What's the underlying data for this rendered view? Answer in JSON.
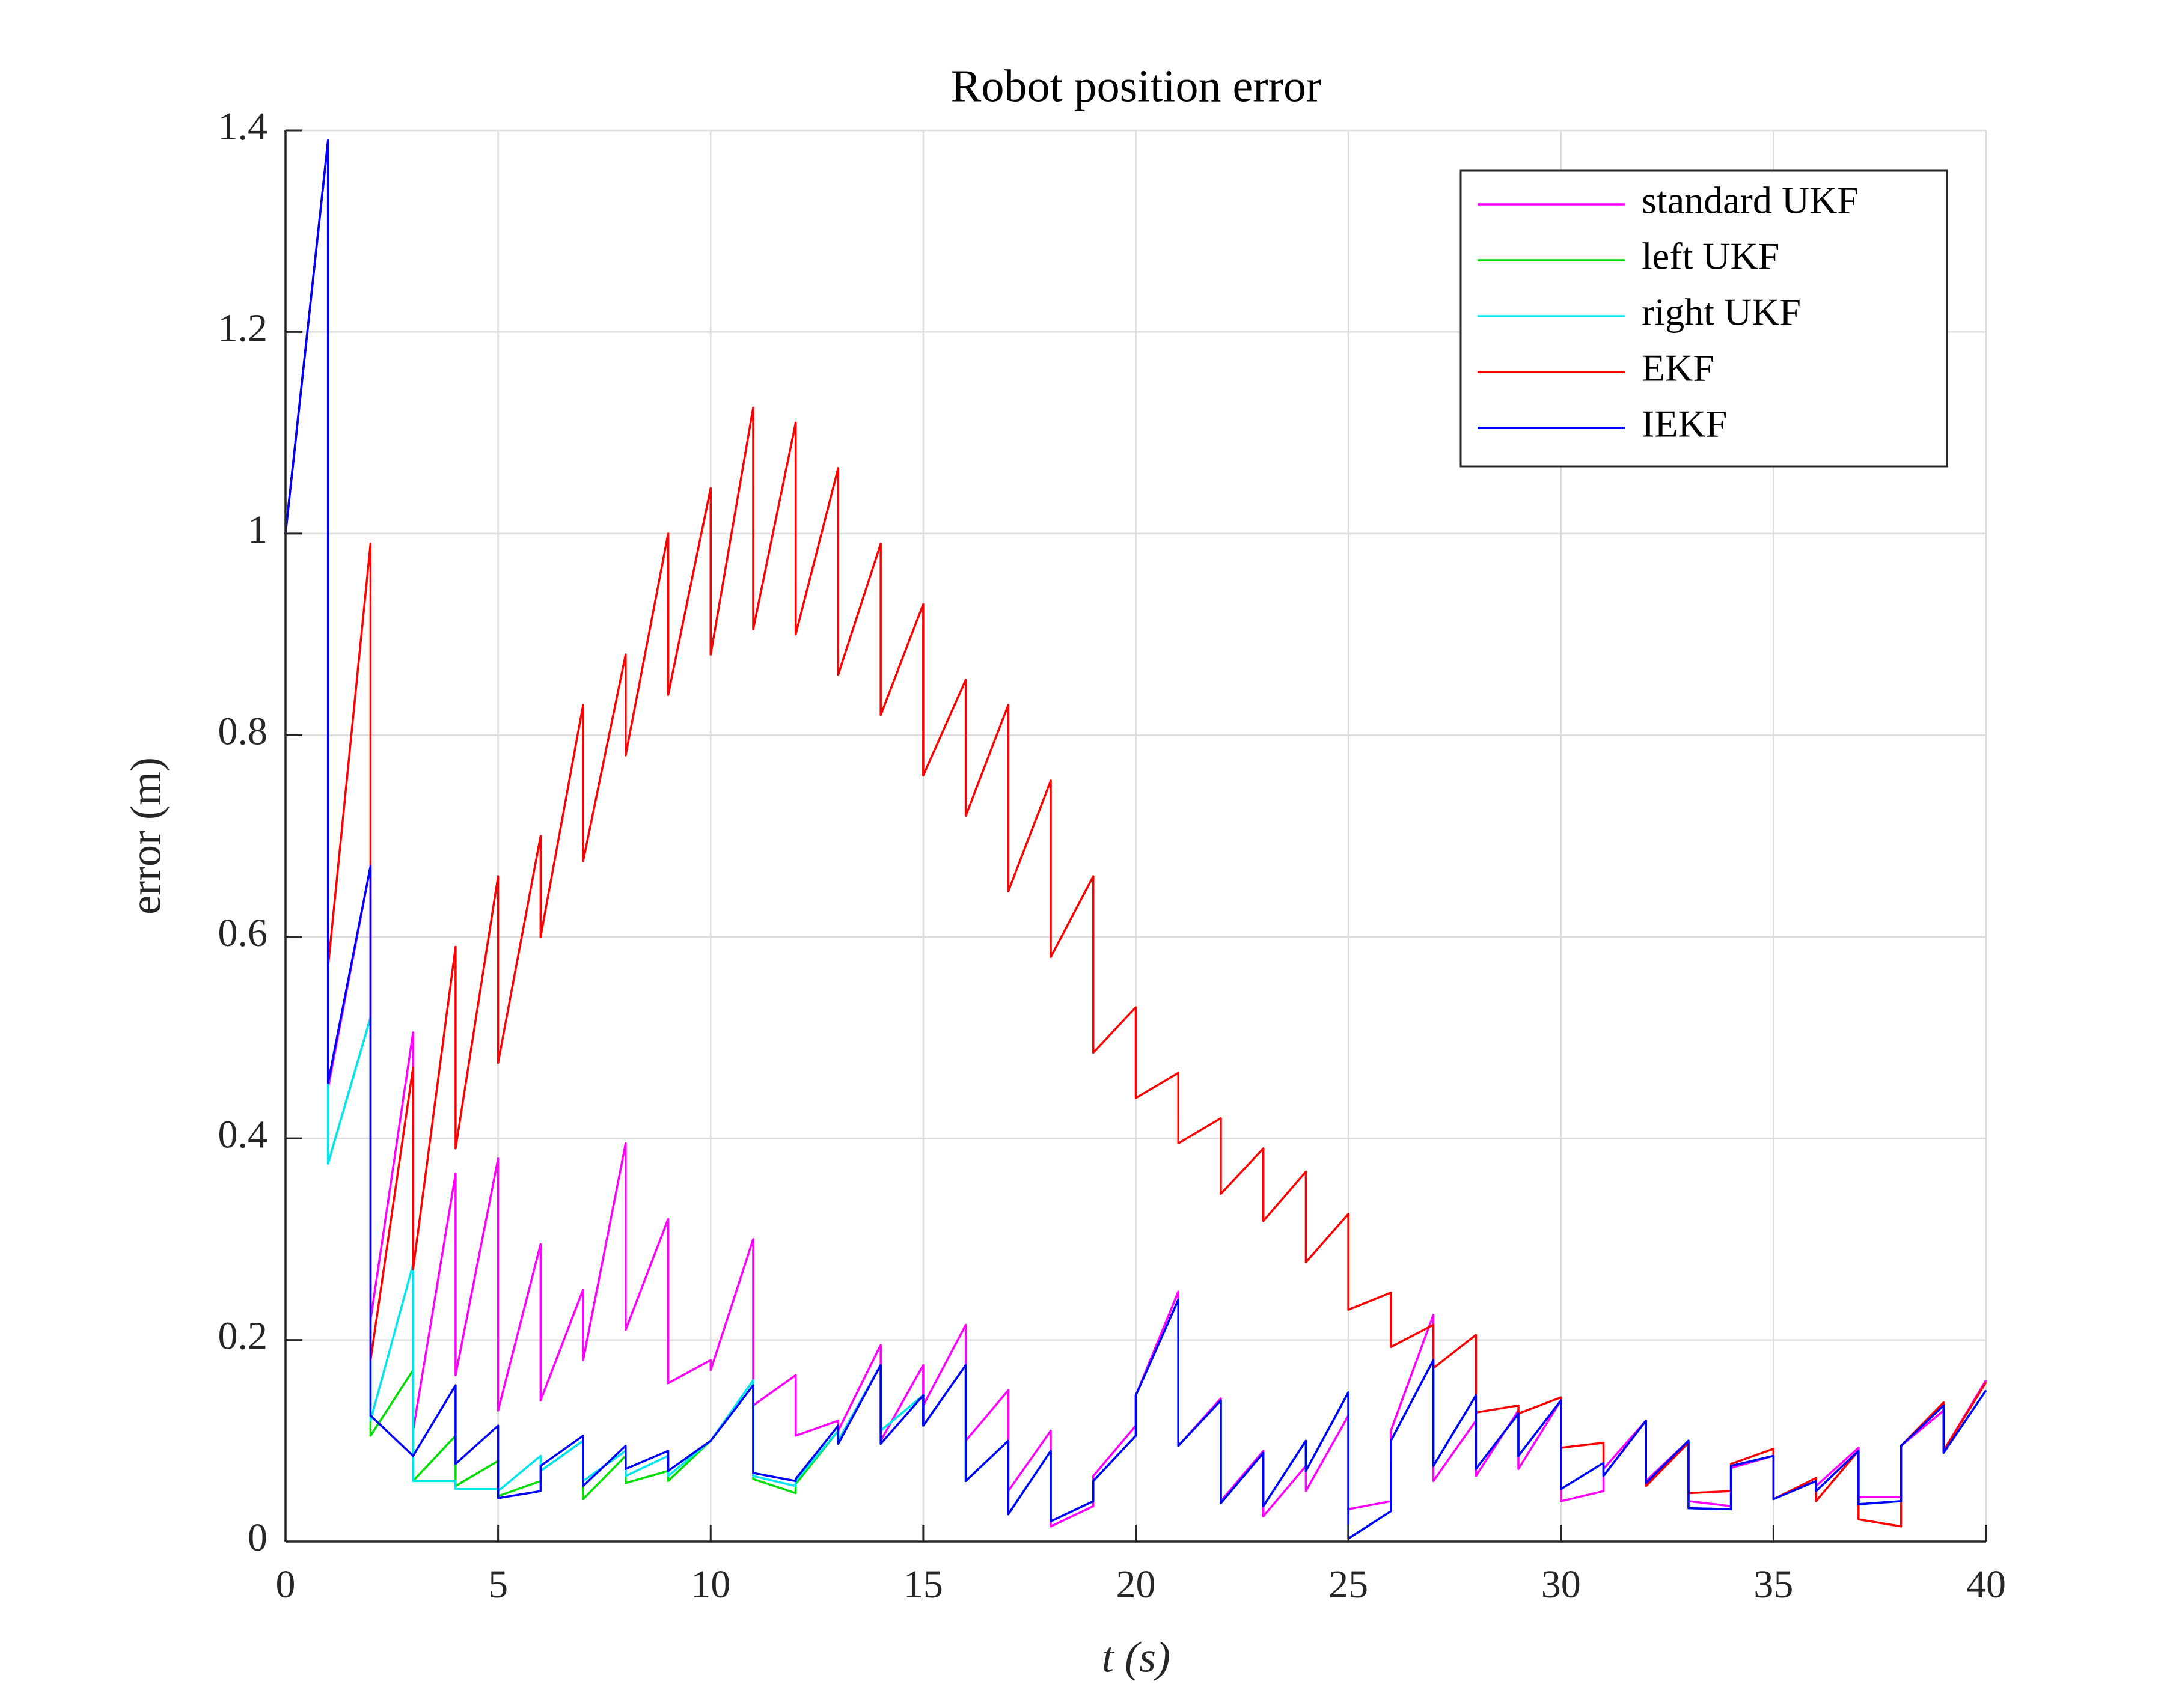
{
  "chart_data": {
    "type": "line",
    "title": "Robot position error",
    "xlabel": "t (s)",
    "ylabel": "error (m)",
    "xlim": [
      0,
      40
    ],
    "ylim": [
      0,
      1.4
    ],
    "xticks": [
      0,
      5,
      10,
      15,
      20,
      25,
      30,
      35,
      40
    ],
    "yticks": [
      0,
      0.2,
      0.4,
      0.6,
      0.8,
      1,
      1.2,
      1.4
    ],
    "grid": true,
    "legend": "northeast",
    "x": [
      0,
      1,
      1,
      2,
      2,
      3,
      3,
      4,
      4,
      5,
      5,
      6,
      6,
      7,
      7,
      8,
      8,
      9,
      9,
      10,
      10,
      11,
      11,
      12,
      12,
      13,
      13,
      14,
      14,
      15,
      15,
      16,
      16,
      17,
      17,
      18,
      18,
      19,
      19,
      20,
      20,
      21,
      21,
      22,
      22,
      23,
      23,
      24,
      24,
      25,
      25,
      26,
      26,
      27,
      27,
      28,
      28,
      29,
      29,
      30,
      30,
      31,
      31,
      32,
      32,
      33,
      33,
      34,
      34,
      35,
      35,
      36,
      36,
      37,
      37,
      38,
      38,
      39,
      39,
      40
    ],
    "series": [
      {
        "name": "standard UKF",
        "color": "#ff00ff",
        "values": [
          1,
          1.39,
          0.45,
          0.67,
          0.22,
          0.505,
          0.11,
          0.365,
          0.165,
          0.38,
          0.13,
          0.295,
          0.14,
          0.25,
          0.18,
          0.395,
          0.21,
          0.32,
          0.157,
          0.18,
          0.17,
          0.3,
          0.135,
          0.165,
          0.105,
          0.12,
          0.11,
          0.195,
          0.1,
          0.175,
          0.135,
          0.215,
          0.1,
          0.15,
          0.05,
          0.11,
          0.015,
          0.035,
          0.065,
          0.115,
          0.145,
          0.248,
          0.095,
          0.142,
          0.04,
          0.09,
          0.025,
          0.075,
          0.05,
          0.125,
          0.032,
          0.04,
          0.11,
          0.225,
          0.06,
          0.12,
          0.065,
          0.13,
          0.072,
          0.14,
          0.04,
          0.05,
          0.072,
          0.12,
          0.06,
          0.1,
          0.04,
          0.035,
          0.073,
          0.085,
          0.042,
          0.06,
          0.055,
          0.093,
          0.044,
          0.044,
          0.095,
          0.13,
          0.09,
          0.16
        ]
      },
      {
        "name": "left UKF",
        "color": "#00dd00",
        "values": [
          1,
          1.39,
          0.375,
          0.52,
          0.105,
          0.17,
          0.06,
          0.105,
          0.055,
          0.08,
          0.045,
          0.06,
          0.07,
          0.1,
          0.042,
          0.085,
          0.058,
          0.07,
          0.06,
          0.1,
          0.1,
          0.155,
          0.062,
          0.048,
          0.057,
          0.11,
          0.1,
          0.175,
          0.11,
          0.145,
          0.115,
          0.175,
          0.06,
          0.1,
          0.027,
          0.09,
          0.02,
          0.04,
          0.06,
          0.105,
          0.145,
          0.24,
          0.095,
          0.14,
          0.038,
          0.088,
          0.035,
          0.1,
          0.07,
          0.148,
          0.003,
          0.03,
          0.1,
          0.18,
          0.075,
          0.145,
          0.072,
          0.127,
          0.085,
          0.14,
          0.052,
          0.078,
          0.065,
          0.12,
          0.058,
          0.1,
          0.033,
          0.032,
          0.075,
          0.085,
          0.042,
          0.06,
          0.05,
          0.09,
          0.037,
          0.04,
          0.095,
          0.135,
          0.088,
          0.15
        ]
      },
      {
        "name": "right UKF",
        "color": "#00e5ee",
        "values": [
          1,
          1.39,
          0.375,
          0.52,
          0.12,
          0.275,
          0.06,
          0.06,
          0.052,
          0.052,
          0.05,
          0.085,
          0.07,
          0.1,
          0.06,
          0.09,
          0.065,
          0.085,
          0.065,
          0.1,
          0.1,
          0.16,
          0.065,
          0.055,
          0.06,
          0.11,
          0.1,
          0.175,
          0.11,
          0.145,
          0.115,
          0.175,
          0.06,
          0.1,
          0.027,
          0.09,
          0.02,
          0.04,
          0.06,
          0.105,
          0.145,
          0.24,
          0.095,
          0.14,
          0.038,
          0.088,
          0.035,
          0.1,
          0.07,
          0.148,
          0.003,
          0.03,
          0.1,
          0.18,
          0.075,
          0.145,
          0.072,
          0.127,
          0.085,
          0.14,
          0.052,
          0.078,
          0.065,
          0.12,
          0.058,
          0.1,
          0.033,
          0.032,
          0.075,
          0.085,
          0.042,
          0.06,
          0.05,
          0.09,
          0.037,
          0.04,
          0.095,
          0.135,
          0.088,
          0.15
        ]
      },
      {
        "name": "EKF",
        "color": "#ff0000",
        "values": [
          1,
          1.39,
          0.57,
          0.99,
          0.18,
          0.47,
          0.27,
          0.59,
          0.39,
          0.66,
          0.475,
          0.7,
          0.6,
          0.83,
          0.675,
          0.88,
          0.78,
          1,
          0.84,
          1.045,
          0.88,
          1.125,
          0.905,
          1.11,
          0.9,
          1.065,
          0.86,
          0.99,
          0.82,
          0.93,
          0.76,
          0.855,
          0.72,
          0.83,
          0.645,
          0.755,
          0.58,
          0.66,
          0.485,
          0.53,
          0.44,
          0.465,
          0.395,
          0.42,
          0.345,
          0.39,
          0.318,
          0.367,
          0.277,
          0.325,
          0.23,
          0.247,
          0.193,
          0.215,
          0.172,
          0.205,
          0.128,
          0.135,
          0.127,
          0.143,
          0.093,
          0.098,
          0.065,
          0.12,
          0.055,
          0.098,
          0.048,
          0.05,
          0.077,
          0.092,
          0.042,
          0.063,
          0.04,
          0.09,
          0.022,
          0.015,
          0.095,
          0.138,
          0.09,
          0.158
        ]
      },
      {
        "name": "IEKF",
        "color": "#0000ff",
        "values": [
          1,
          1.39,
          0.455,
          0.67,
          0.125,
          0.085,
          0.085,
          0.155,
          0.077,
          0.115,
          0.043,
          0.05,
          0.075,
          0.105,
          0.055,
          0.095,
          0.072,
          0.09,
          0.07,
          0.1,
          0.1,
          0.155,
          0.068,
          0.06,
          0.062,
          0.115,
          0.097,
          0.175,
          0.097,
          0.145,
          0.115,
          0.175,
          0.06,
          0.1,
          0.027,
          0.09,
          0.02,
          0.04,
          0.06,
          0.105,
          0.145,
          0.24,
          0.095,
          0.14,
          0.038,
          0.088,
          0.035,
          0.1,
          0.07,
          0.148,
          0.003,
          0.03,
          0.1,
          0.18,
          0.075,
          0.145,
          0.072,
          0.127,
          0.085,
          0.14,
          0.052,
          0.078,
          0.065,
          0.12,
          0.058,
          0.1,
          0.033,
          0.032,
          0.075,
          0.085,
          0.042,
          0.06,
          0.05,
          0.09,
          0.037,
          0.04,
          0.095,
          0.135,
          0.088,
          0.15
        ]
      }
    ]
  }
}
